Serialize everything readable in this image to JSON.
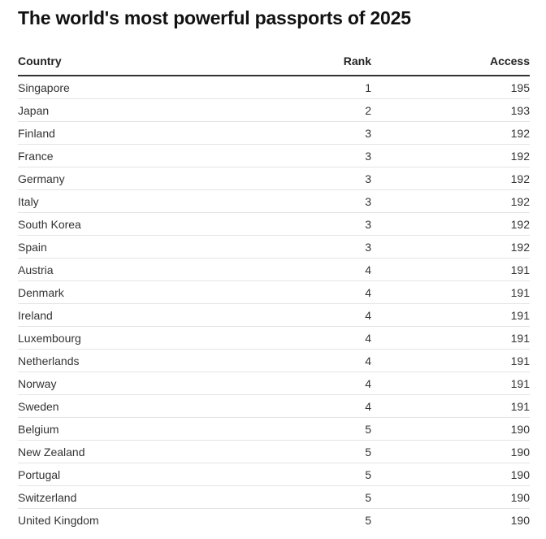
{
  "chart_data": {
    "type": "table",
    "title": "The world's most powerful passports of 2025",
    "columns": [
      "Country",
      "Rank",
      "Access"
    ],
    "rows": [
      {
        "country": "Singapore",
        "rank": 1,
        "access": 195
      },
      {
        "country": "Japan",
        "rank": 2,
        "access": 193
      },
      {
        "country": "Finland",
        "rank": 3,
        "access": 192
      },
      {
        "country": "France",
        "rank": 3,
        "access": 192
      },
      {
        "country": "Germany",
        "rank": 3,
        "access": 192
      },
      {
        "country": "Italy",
        "rank": 3,
        "access": 192
      },
      {
        "country": "South Korea",
        "rank": 3,
        "access": 192
      },
      {
        "country": "Spain",
        "rank": 3,
        "access": 192
      },
      {
        "country": "Austria",
        "rank": 4,
        "access": 191
      },
      {
        "country": "Denmark",
        "rank": 4,
        "access": 191
      },
      {
        "country": "Ireland",
        "rank": 4,
        "access": 191
      },
      {
        "country": "Luxembourg",
        "rank": 4,
        "access": 191
      },
      {
        "country": "Netherlands",
        "rank": 4,
        "access": 191
      },
      {
        "country": "Norway",
        "rank": 4,
        "access": 191
      },
      {
        "country": "Sweden",
        "rank": 4,
        "access": 191
      },
      {
        "country": "Belgium",
        "rank": 5,
        "access": 190
      },
      {
        "country": "New Zealand",
        "rank": 5,
        "access": 190
      },
      {
        "country": "Portugal",
        "rank": 5,
        "access": 190
      },
      {
        "country": "Switzerland",
        "rank": 5,
        "access": 190
      },
      {
        "country": "United Kingdom",
        "rank": 5,
        "access": 190
      }
    ]
  }
}
